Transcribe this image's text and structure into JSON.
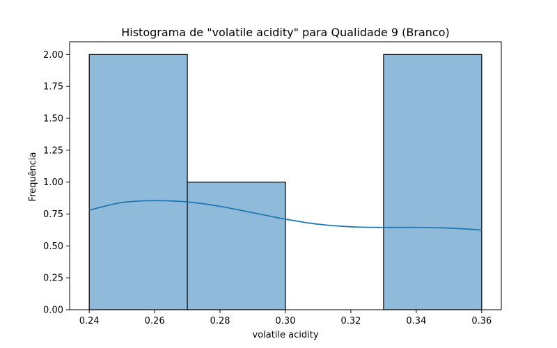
{
  "chart_data": {
    "type": "bar",
    "subtype": "histogram-with-kde",
    "title": "Histograma de \"volatile acidity\" para Qualidade 9 (Branco)",
    "xlabel": "volatile acidity",
    "ylabel": "Frequência",
    "xlim": [
      0.234,
      0.366
    ],
    "ylim": [
      0,
      2.1
    ],
    "bins": [
      {
        "start": 0.24,
        "end": 0.27,
        "count": 2
      },
      {
        "start": 0.27,
        "end": 0.3,
        "count": 1
      },
      {
        "start": 0.3,
        "end": 0.33,
        "count": 0
      },
      {
        "start": 0.33,
        "end": 0.36,
        "count": 2
      }
    ],
    "x_ticks": [
      0.24,
      0.26,
      0.28,
      0.3,
      0.32,
      0.34,
      0.36
    ],
    "x_tick_labels": [
      "0.24",
      "0.26",
      "0.28",
      "0.30",
      "0.32",
      "0.34",
      "0.36"
    ],
    "y_ticks": [
      0,
      0.25,
      0.5,
      0.75,
      1.0,
      1.25,
      1.5,
      1.75,
      2.0
    ],
    "y_tick_labels": [
      "0.00",
      "0.25",
      "0.50",
      "0.75",
      "1.00",
      "1.25",
      "1.50",
      "1.75",
      "2.00"
    ],
    "kde": {
      "x": [
        0.24,
        0.25,
        0.26,
        0.27,
        0.28,
        0.29,
        0.3,
        0.31,
        0.32,
        0.33,
        0.34,
        0.35,
        0.36
      ],
      "y": [
        0.78,
        0.84,
        0.855,
        0.845,
        0.81,
        0.76,
        0.71,
        0.67,
        0.65,
        0.645,
        0.645,
        0.64,
        0.625
      ]
    },
    "grid": false,
    "colors": {
      "bar_fill": "#8fbad9",
      "bar_edge": "#000000",
      "kde_line": "#1f77b4"
    }
  }
}
